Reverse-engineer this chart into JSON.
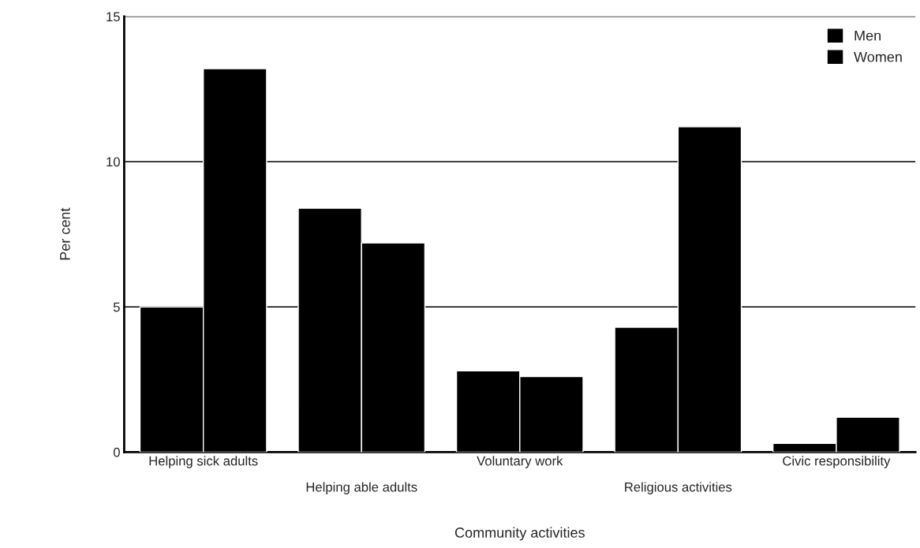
{
  "chart_data": {
    "type": "bar",
    "xlabel": "Community activities",
    "ylabel": "Per cent",
    "categories": [
      "Helping sick adults",
      "Helping able adults",
      "Voluntary work",
      "Religious activities",
      "Civic responsibility"
    ],
    "series": [
      {
        "name": "Men",
        "color": "#000000",
        "values": [
          5.0,
          8.4,
          2.8,
          4.3,
          0.3
        ]
      },
      {
        "name": "Women",
        "color": "#000000",
        "values": [
          13.2,
          7.2,
          2.6,
          11.2,
          1.2
        ]
      }
    ],
    "ylim": [
      0,
      15
    ],
    "yticks": [
      0,
      5,
      10,
      15
    ],
    "grid": "y",
    "legend": "top right"
  }
}
